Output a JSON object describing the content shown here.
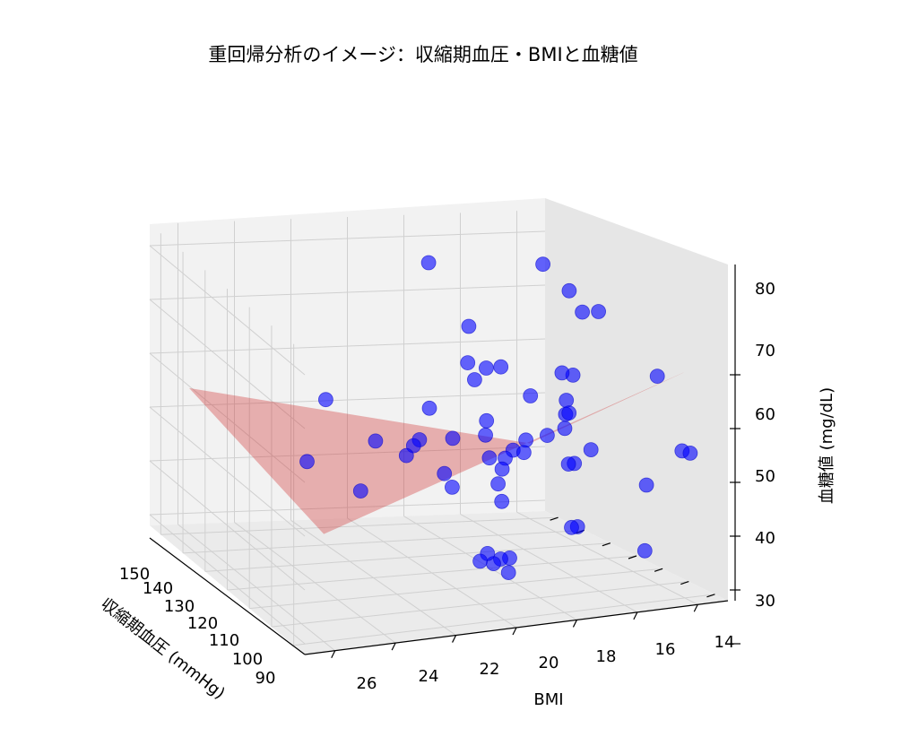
{
  "chart_data": {
    "type": "scatter3d",
    "title": "重回帰分析のイメージ：収縮期血圧・BMIと血糖値",
    "xlabel": "BMI",
    "ylabel": "収縮期血圧 (mmHg)",
    "zlabel": "血糖値 (mg/dL)",
    "xlim": [
      13,
      27
    ],
    "ylim": [
      85,
      155
    ],
    "zlim": [
      28,
      84
    ],
    "xticks": [
      "14",
      "16",
      "18",
      "20",
      "22",
      "24",
      "26"
    ],
    "yticks": [
      "90",
      "100",
      "110",
      "120",
      "130",
      "140",
      "150"
    ],
    "zticks": [
      "30",
      "40",
      "50",
      "60",
      "70",
      "80"
    ],
    "grid": true,
    "point_color": "#0000ff",
    "plane_color": "#d03030",
    "regression_plane": {
      "x_range": [
        14,
        26
      ],
      "y_range": [
        90,
        150
      ],
      "corners_z": [
        70,
        42,
        55,
        48
      ]
    },
    "points": [
      {
        "x": 26.1,
        "y": 106,
        "z": 45
      },
      {
        "x": 26.6,
        "y": 98,
        "z": 53
      },
      {
        "x": 26.7,
        "y": 96,
        "z": 53
      },
      {
        "x": 25.2,
        "y": 136,
        "z": 79
      },
      {
        "x": 25.4,
        "y": 128,
        "z": 76
      },
      {
        "x": 25.7,
        "y": 120,
        "z": 74
      },
      {
        "x": 25.5,
        "y": 124,
        "z": 73
      },
      {
        "x": 25.6,
        "y": 96,
        "z": 68
      },
      {
        "x": 25.0,
        "y": 122,
        "z": 62
      },
      {
        "x": 24.8,
        "y": 124,
        "z": 62
      },
      {
        "x": 24.6,
        "y": 120,
        "z": 58
      },
      {
        "x": 24.4,
        "y": 118,
        "z": 56
      },
      {
        "x": 24.2,
        "y": 116,
        "z": 54
      },
      {
        "x": 24.4,
        "y": 108,
        "z": 52
      },
      {
        "x": 24.0,
        "y": 112,
        "z": 58
      },
      {
        "x": 23.5,
        "y": 104,
        "z": 51
      },
      {
        "x": 23.3,
        "y": 104,
        "z": 51
      },
      {
        "x": 23.6,
        "y": 116,
        "z": 53
      },
      {
        "x": 23.2,
        "y": 118,
        "z": 60
      },
      {
        "x": 22.7,
        "y": 124,
        "z": 64
      },
      {
        "x": 22.2,
        "y": 124,
        "z": 64
      },
      {
        "x": 21.9,
        "y": 128,
        "z": 64
      },
      {
        "x": 21.8,
        "y": 124,
        "z": 62
      },
      {
        "x": 22.2,
        "y": 108,
        "z": 55
      },
      {
        "x": 21.6,
        "y": 106,
        "z": 54
      },
      {
        "x": 21.8,
        "y": 104,
        "z": 54
      },
      {
        "x": 21.5,
        "y": 108,
        "z": 52
      },
      {
        "x": 21.2,
        "y": 112,
        "z": 58
      },
      {
        "x": 21.0,
        "y": 110,
        "z": 56
      },
      {
        "x": 20.8,
        "y": 106,
        "z": 53
      },
      {
        "x": 20.9,
        "y": 102,
        "z": 52
      },
      {
        "x": 20.6,
        "y": 100,
        "z": 50
      },
      {
        "x": 20.4,
        "y": 96,
        "z": 48
      },
      {
        "x": 21.4,
        "y": 138,
        "z": 80
      },
      {
        "x": 21.6,
        "y": 124,
        "z": 72
      },
      {
        "x": 22.6,
        "y": 92,
        "z": 43
      },
      {
        "x": 22.4,
        "y": 92,
        "z": 43
      },
      {
        "x": 20.5,
        "y": 94,
        "z": 38
      },
      {
        "x": 20.2,
        "y": 94,
        "z": 38
      },
      {
        "x": 20.3,
        "y": 92,
        "z": 36
      },
      {
        "x": 19.8,
        "y": 92,
        "z": 38
      },
      {
        "x": 19.6,
        "y": 92,
        "z": 40
      },
      {
        "x": 20.0,
        "y": 100,
        "z": 36
      },
      {
        "x": 25.7,
        "y": 102,
        "z": 34
      },
      {
        "x": 19.4,
        "y": 104,
        "z": 58
      },
      {
        "x": 19.1,
        "y": 110,
        "z": 62
      },
      {
        "x": 18.6,
        "y": 108,
        "z": 57
      },
      {
        "x": 18.4,
        "y": 108,
        "z": 56
      },
      {
        "x": 18.0,
        "y": 106,
        "z": 55
      },
      {
        "x": 18.8,
        "y": 100,
        "z": 53
      },
      {
        "x": 18.9,
        "y": 98,
        "z": 51
      },
      {
        "x": 16.8,
        "y": 104,
        "z": 59
      },
      {
        "x": 16.3,
        "y": 104,
        "z": 50
      },
      {
        "x": 15.9,
        "y": 114,
        "z": 64
      },
      {
        "x": 14.8,
        "y": 108,
        "z": 55
      }
    ]
  }
}
